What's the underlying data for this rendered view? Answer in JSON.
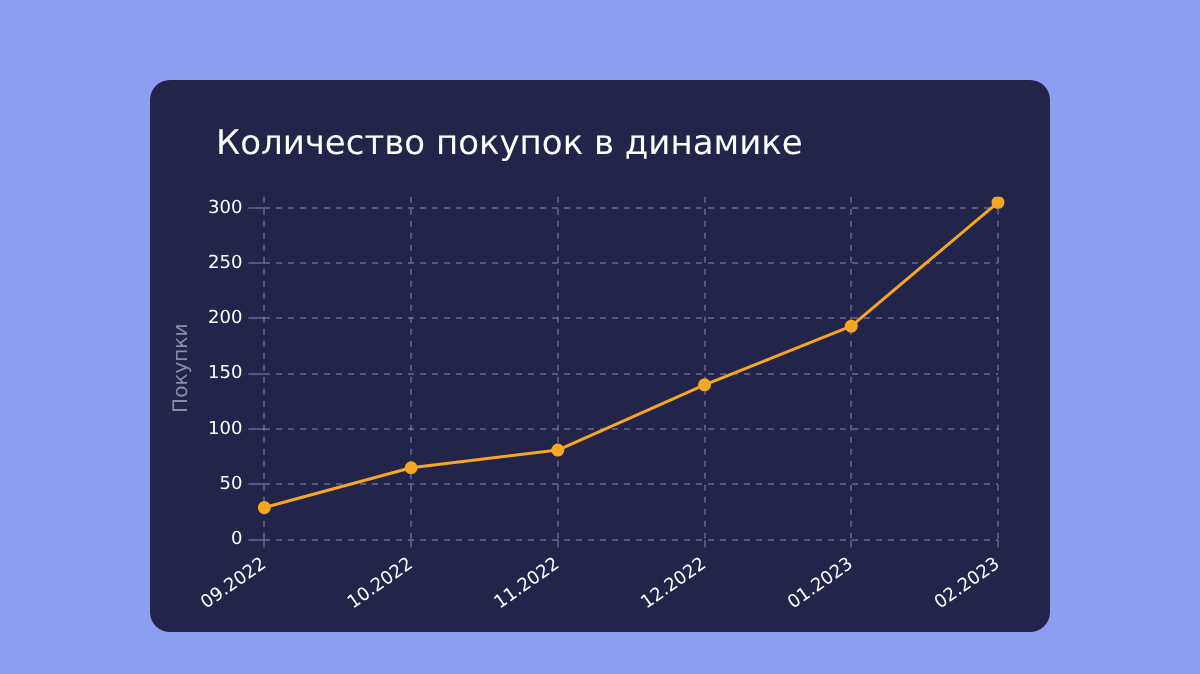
{
  "chart_data": {
    "type": "line",
    "title": "Количество покупок в динамике",
    "ylabel": "Покупки",
    "categories": [
      "09.2022",
      "10.2022",
      "11.2022",
      "12.2022",
      "01.2023",
      "02.2023"
    ],
    "series": [
      {
        "color": "#f5a623",
        "values": [
          29,
          65,
          81,
          140,
          193,
          305
        ]
      }
    ],
    "ylim": [
      0,
      310
    ],
    "yticks": [
      0,
      50,
      100,
      150,
      200,
      250,
      300
    ],
    "grid": true,
    "marker": "circle",
    "line_style": "solid",
    "legend": false
  }
}
